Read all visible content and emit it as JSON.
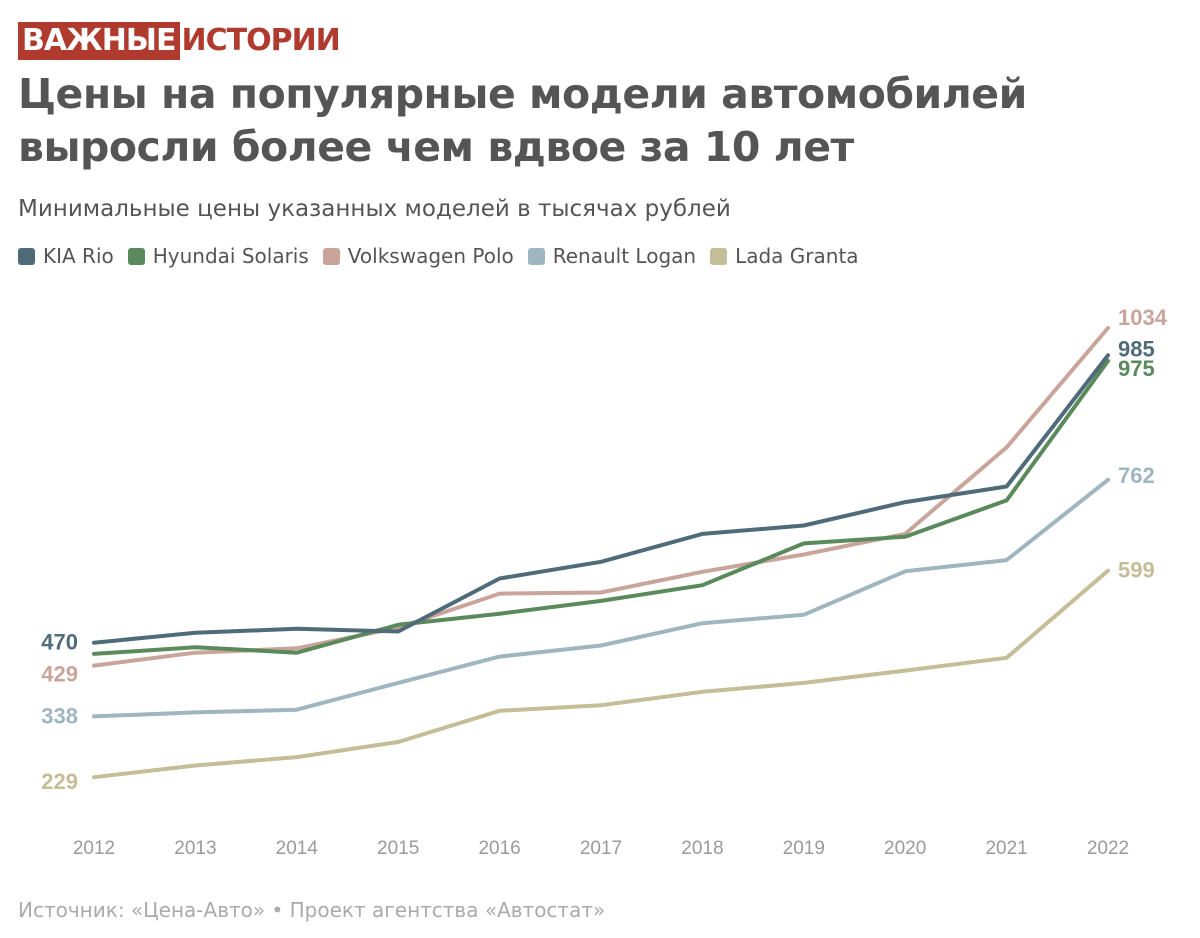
{
  "logo": {
    "part1": "ВАЖНЫЕ",
    "part2": "ИСТОРИИ"
  },
  "title": "Цены на популярные модели автомобилей выросли более чем вдвое за 10 лет",
  "subtitle": "Минимальные цены указанных моделей в тысячах рублей",
  "source": "Источник: «Цена-Авто» • Проект агентства «Автостат»",
  "chart_data": {
    "type": "line",
    "x": [
      2012,
      2013,
      2014,
      2015,
      2016,
      2017,
      2018,
      2019,
      2020,
      2021,
      2022
    ],
    "ylim": [
      120,
      1120
    ],
    "grid": false,
    "legend": "top-left",
    "series": [
      {
        "name": "KIA Rio",
        "color": "#4f6b7a",
        "values": [
          470,
          488,
          495,
          490,
          585,
          615,
          665,
          680,
          722,
          750,
          985
        ],
        "start_label": "470",
        "end_label": "985"
      },
      {
        "name": "Hyundai Solaris",
        "color": "#5a8a5c",
        "values": [
          450,
          462,
          452,
          502,
          522,
          545,
          573,
          648,
          660,
          725,
          975
        ],
        "start_label": "",
        "end_label": "975"
      },
      {
        "name": "Volkswagen Polo",
        "color": "#c9a49b",
        "values": [
          429,
          452,
          460,
          497,
          558,
          560,
          597,
          628,
          665,
          820,
          1034
        ],
        "start_label": "429",
        "end_label": "1034"
      },
      {
        "name": "Renault Logan",
        "color": "#9fb5c0",
        "values": [
          338,
          345,
          350,
          398,
          445,
          465,
          505,
          520,
          598,
          618,
          762
        ],
        "start_label": "338",
        "end_label": "762"
      },
      {
        "name": "Lada Granta",
        "color": "#c4bd97",
        "values": [
          229,
          250,
          265,
          292,
          348,
          358,
          382,
          398,
          420,
          443,
          599
        ],
        "start_label": "229",
        "end_label": "599"
      }
    ]
  }
}
